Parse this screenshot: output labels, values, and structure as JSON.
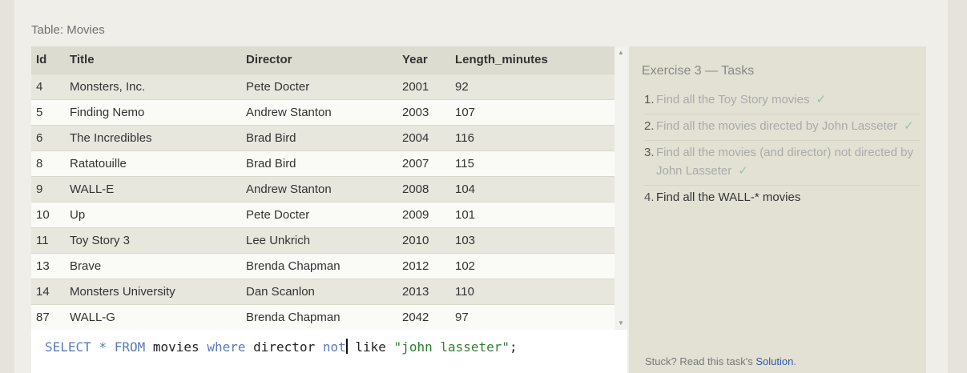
{
  "table": {
    "caption": "Table: Movies",
    "columns": [
      "Id",
      "Title",
      "Director",
      "Year",
      "Length_minutes"
    ],
    "rows": [
      [
        "4",
        "Monsters, Inc.",
        "Pete Docter",
        "2001",
        "92"
      ],
      [
        "5",
        "Finding Nemo",
        "Andrew Stanton",
        "2003",
        "107"
      ],
      [
        "6",
        "The Incredibles",
        "Brad Bird",
        "2004",
        "116"
      ],
      [
        "8",
        "Ratatouille",
        "Brad Bird",
        "2007",
        "115"
      ],
      [
        "9",
        "WALL-E",
        "Andrew Stanton",
        "2008",
        "104"
      ],
      [
        "10",
        "Up",
        "Pete Docter",
        "2009",
        "101"
      ],
      [
        "11",
        "Toy Story 3",
        "Lee Unkrich",
        "2010",
        "103"
      ],
      [
        "13",
        "Brave",
        "Brenda Chapman",
        "2012",
        "102"
      ],
      [
        "14",
        "Monsters University",
        "Dan Scanlon",
        "2013",
        "110"
      ],
      [
        "87",
        "WALL-G",
        "Brenda Chapman",
        "2042",
        "97"
      ]
    ]
  },
  "tasks": {
    "title": "Exercise 3 — Tasks",
    "items": [
      {
        "num": "1.",
        "text": "Find all the Toy Story movies",
        "done": true,
        "check": "✓"
      },
      {
        "num": "2.",
        "text": "Find all the movies directed by John Lasseter",
        "done": true,
        "check": "✓"
      },
      {
        "num": "3.",
        "text": "Find all the movies (and director) not directed by John Lasseter",
        "done": true,
        "check": "✓"
      },
      {
        "num": "4.",
        "text": "Find all the WALL-* movies",
        "done": false,
        "check": ""
      }
    ],
    "stuck_text": "Stuck? Read this task's ",
    "solution_link": "Solution",
    "stuck_suffix": "."
  },
  "editor": {
    "tokens": [
      {
        "t": "SELECT",
        "c": "kw"
      },
      {
        "t": " ",
        "c": "id"
      },
      {
        "t": "*",
        "c": "kw"
      },
      {
        "t": " ",
        "c": "id"
      },
      {
        "t": "FROM",
        "c": "kw"
      },
      {
        "t": " ",
        "c": "id"
      },
      {
        "t": "movies",
        "c": "id"
      },
      {
        "t": " ",
        "c": "id"
      },
      {
        "t": "where",
        "c": "kw"
      },
      {
        "t": " ",
        "c": "id"
      },
      {
        "t": "director",
        "c": "id"
      },
      {
        "t": " ",
        "c": "id"
      },
      {
        "t": "not",
        "c": "kw"
      },
      {
        "t": "|caret|",
        "c": "caret"
      },
      {
        "t": " like ",
        "c": "id"
      },
      {
        "t": "\"john lasseter\"",
        "c": "str"
      },
      {
        "t": ";",
        "c": "id"
      }
    ]
  }
}
